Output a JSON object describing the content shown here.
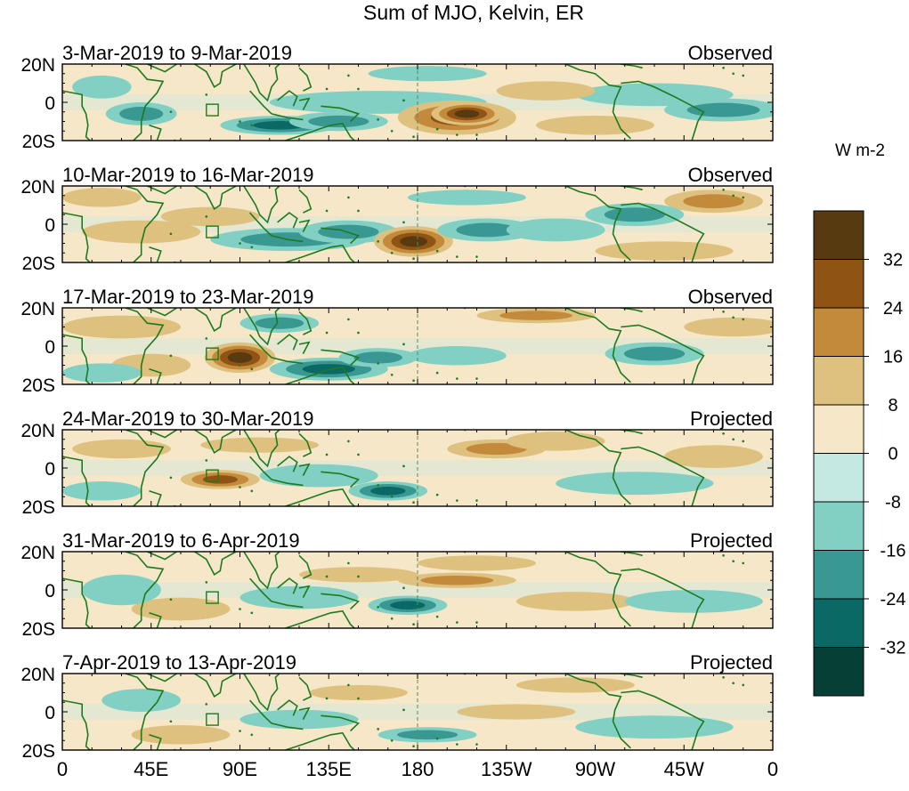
{
  "title": "Sum of MJO, Kelvin, ER",
  "units": "W m-2",
  "panels": [
    {
      "date_range": "3-Mar-2019 to 9-Mar-2019",
      "status": "Observed"
    },
    {
      "date_range": "10-Mar-2019 to 16-Mar-2019",
      "status": "Observed"
    },
    {
      "date_range": "17-Mar-2019 to 23-Mar-2019",
      "status": "Observed"
    },
    {
      "date_range": "24-Mar-2019 to 30-Mar-2019",
      "status": "Projected"
    },
    {
      "date_range": "31-Mar-2019 to 6-Apr-2019",
      "status": "Projected"
    },
    {
      "date_range": "7-Apr-2019 to 13-Apr-2019",
      "status": "Projected"
    }
  ],
  "lat_labels": [
    "20N",
    "0",
    "20S"
  ],
  "lon_labels": [
    "0",
    "45E",
    "90E",
    "135E",
    "180",
    "135W",
    "90W",
    "45W",
    "0"
  ],
  "colorbar": {
    "labels": [
      "32",
      "24",
      "16",
      "8",
      "0",
      "-8",
      "-16",
      "-24",
      "-32"
    ],
    "colors": [
      "#573a10",
      "#8f5314",
      "#c48a3c",
      "#dfc17f",
      "#f6e7c8",
      "#c4e8e2",
      "#82cfc3",
      "#3a9892",
      "#0a6964",
      "#053f36"
    ]
  },
  "colors": {
    "coastline": "#1e7a1e",
    "dateline": "#5a8a5a"
  }
}
